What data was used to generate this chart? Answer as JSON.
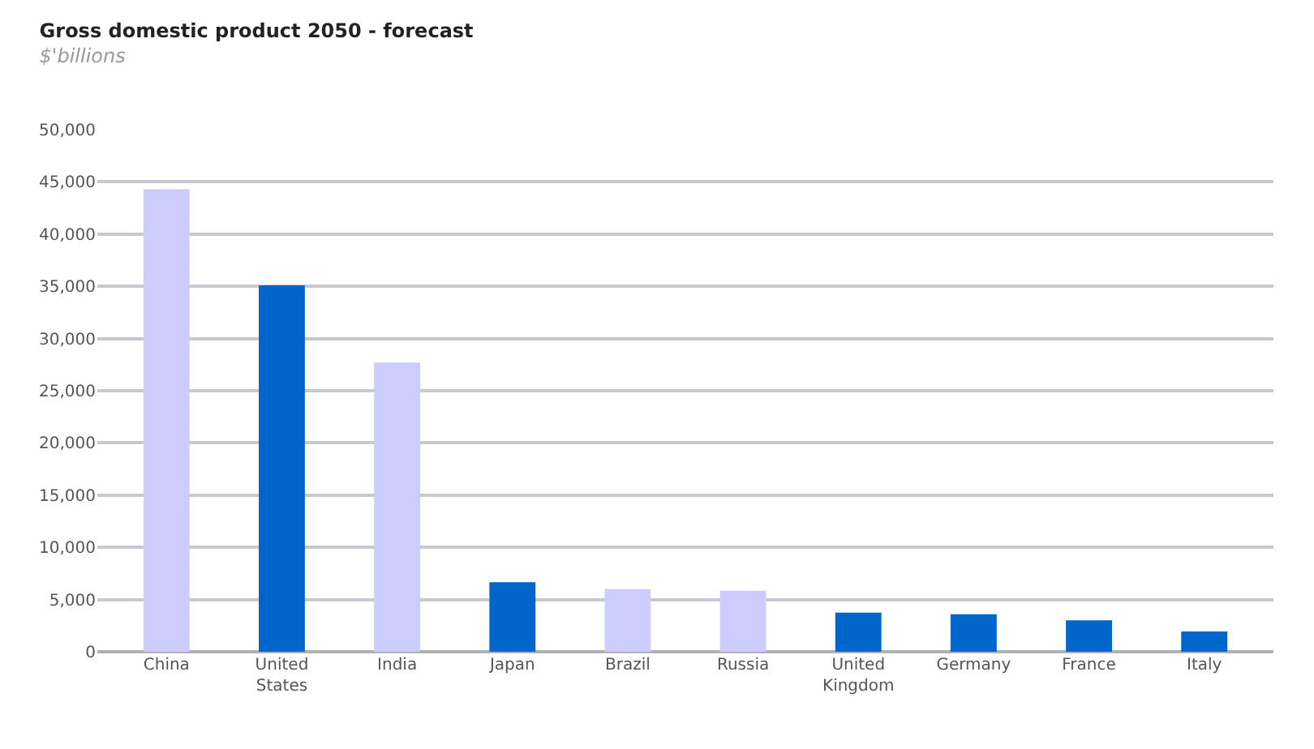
{
  "chart_data": {
    "type": "bar",
    "title": "Gross domestic product 2050 - forecast",
    "subtitle": "$'billions",
    "categories": [
      "China",
      "United States",
      "India",
      "Japan",
      "Brazil",
      "Russia",
      "United Kingdom",
      "Germany",
      "France",
      "Italy"
    ],
    "values": [
      44300,
      35100,
      27700,
      6650,
      6000,
      5850,
      3750,
      3600,
      3000,
      1950
    ],
    "colors": [
      "#ccccff",
      "#0066cc",
      "#ccccff",
      "#0066cc",
      "#ccccff",
      "#ccccff",
      "#0066cc",
      "#0066cc",
      "#0066cc",
      "#0066cc"
    ],
    "ylim": [
      0,
      50000
    ],
    "yticks": [
      {
        "value": 0,
        "label": "0"
      },
      {
        "value": 5000,
        "label": "5,000"
      },
      {
        "value": 10000,
        "label": "10,000"
      },
      {
        "value": 15000,
        "label": "15,000"
      },
      {
        "value": 20000,
        "label": "20,000"
      },
      {
        "value": 25000,
        "label": "25,000"
      },
      {
        "value": 30000,
        "label": "30,000"
      },
      {
        "value": 35000,
        "label": "35,000"
      },
      {
        "value": 40000,
        "label": "40,000"
      },
      {
        "value": 45000,
        "label": "45,000"
      },
      {
        "value": 50000,
        "label": "50,000"
      }
    ],
    "grid": "y",
    "legend": false
  }
}
